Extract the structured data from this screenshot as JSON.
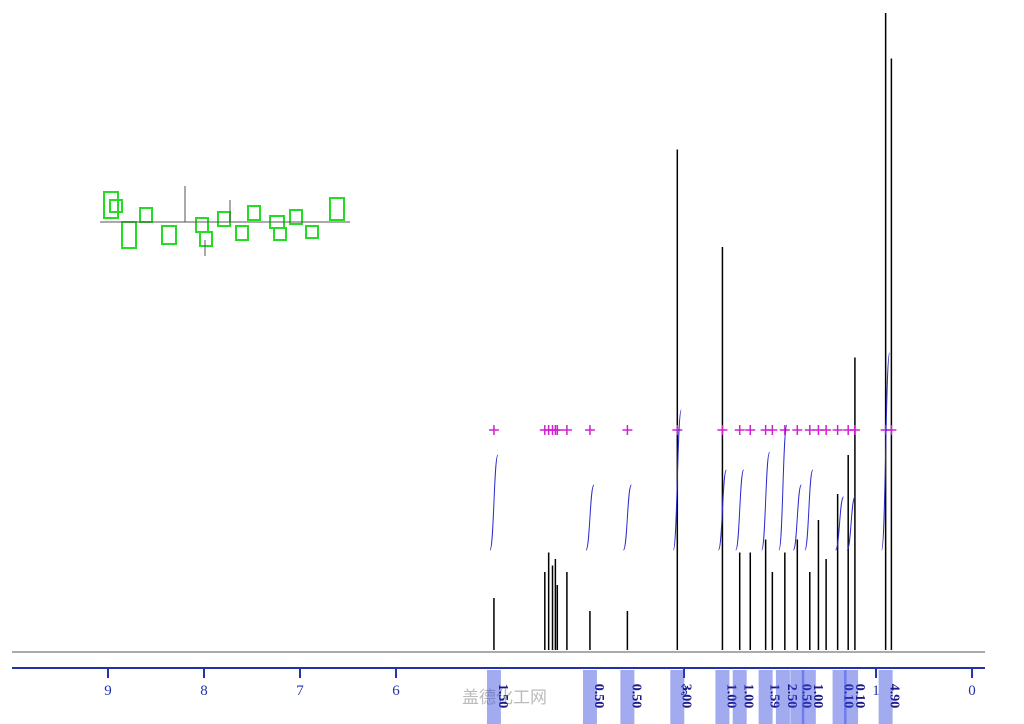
{
  "chart_data": {
    "type": "spectrum",
    "xlim": [
      10,
      -0.135
    ],
    "ylim": [
      0,
      100
    ],
    "xticks": [
      9,
      8,
      7,
      6,
      3,
      1,
      0
    ],
    "color": "#000000",
    "integral_color": "#2a2acc",
    "peaks": {
      "x": [
        4.98,
        4.45,
        4.41,
        4.37,
        4.34,
        4.32,
        4.22,
        3.98,
        3.59,
        3.07,
        2.6,
        2.42,
        2.31,
        2.15,
        2.08,
        1.95,
        1.82,
        1.69,
        1.6,
        1.52,
        1.4,
        1.29,
        1.22,
        0.9,
        0.84
      ],
      "values": [
        8,
        12,
        15,
        13,
        14,
        10,
        12,
        6,
        6,
        77,
        62,
        15,
        15,
        17,
        12,
        15,
        17,
        12,
        20,
        14,
        24,
        30,
        45,
        98,
        91
      ]
    },
    "integrals": {
      "x": [
        4.98,
        3.98,
        3.59,
        3.07,
        2.6,
        2.42,
        2.15,
        1.97,
        1.82,
        1.7,
        1.38,
        1.26,
        0.9
      ],
      "values": [
        1.5,
        0.5,
        0.5,
        3,
        1,
        1,
        1.59,
        2.5,
        0.5,
        1,
        0.1,
        0.1,
        4.9
      ],
      "value_labels": [
        "1.50",
        "0.50",
        "0.50",
        "3.00",
        "1.00",
        "1.00",
        "1.59",
        "2.50",
        "0.50",
        "1.00",
        "0.10",
        "0.10",
        "4.90"
      ]
    },
    "watermark": "盖德化工网"
  }
}
